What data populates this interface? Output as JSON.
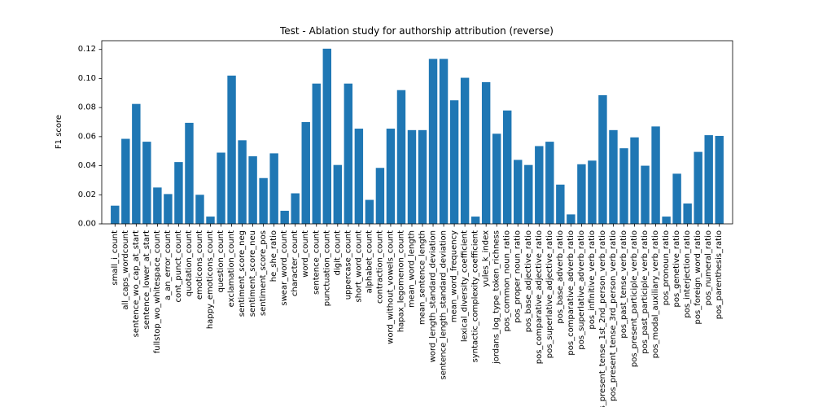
{
  "chart_data": {
    "type": "bar",
    "title": "Test - Ablation study for authorship attribution (reverse)",
    "xlabel": "",
    "ylabel": "F1 score",
    "ylim": [
      0,
      0.126
    ],
    "yticks": [
      "0.00",
      "0.02",
      "0.04",
      "0.06",
      "0.08",
      "0.10",
      "0.12"
    ],
    "bar_color": "#1f77b4",
    "grid": false,
    "categories": [
      "small_i_count",
      "all_caps_wordcount",
      "sentence_wo_cap_at_start",
      "sentence_lower_at_start",
      "fullstop_wo_whitespace_count",
      "a_an_error_count",
      "cont_punct_count",
      "quotation_count",
      "emoticons_count",
      "happy_emoticons_count",
      "question_count",
      "exclamation_count",
      "sentiment_score_neg",
      "sentiment_score_neu",
      "sentiment_score_pos",
      "he_she_ratio",
      "swear_word_count",
      "character_count",
      "word_count",
      "sentence_count",
      "punctuation_count",
      "digit_count",
      "uppercase_count",
      "short_word_count",
      "alphabet_count",
      "contraction_count",
      "word_without_vowels_count",
      "hapax_legomenon_count",
      "mean_word_length",
      "mean_sentence_length",
      "word_length_standard_deviation",
      "sentence_length_standard_deviation",
      "mean_word_frequency",
      "lexical_diversity_coefficient",
      "syntactic_complexity_coefficient",
      "yules_k_index",
      "jordans_log_type_token_richness",
      "pos_common_noun_ratio",
      "pos_proper_noun_ratio",
      "pos_base_adjective_ratio",
      "pos_comparative_adjective_ratio",
      "pos_superlative_adjective_ratio",
      "pos_base_adverb_ratio",
      "pos_comparative_adverb_ratio",
      "pos_superlative_adverb_ratio",
      "pos_infinitive_verb_ratio",
      "pos_present_tense_1st_2nd_person_verb_ratio",
      "pos_present_tense_3rd_person_verb_ratio",
      "pos_past_tense_verb_ratio",
      "pos_present_participle_verb_ratio",
      "pos_past_participle_verb_ratio",
      "pos_modal_auxiliary_verb_ratio",
      "pos_pronoun_ratio",
      "pos_genetive_ratio",
      "pos_interjection_ratio",
      "pos_foreign_word_ratio",
      "pos_numeral_ratio",
      "pos_parenthesis_ratio"
    ],
    "values": [
      0.0125,
      0.0585,
      0.0825,
      0.0565,
      0.025,
      0.0205,
      0.0425,
      0.0695,
      0.02,
      0.005,
      0.049,
      0.102,
      0.0575,
      0.0465,
      0.0315,
      0.0485,
      0.009,
      0.021,
      0.07,
      0.0965,
      0.1205,
      0.0405,
      0.0965,
      0.0655,
      0.0165,
      0.0385,
      0.0655,
      0.092,
      0.0645,
      0.0645,
      0.1135,
      0.1135,
      0.085,
      0.1005,
      0.005,
      0.0975,
      0.062,
      0.078,
      0.044,
      0.0405,
      0.0535,
      0.0565,
      0.027,
      0.0065,
      0.041,
      0.0435,
      0.0885,
      0.0645,
      0.052,
      0.0595,
      0.04,
      0.067,
      0.005,
      0.0345,
      0.014,
      0.0495,
      0.061,
      0.0605
    ]
  }
}
